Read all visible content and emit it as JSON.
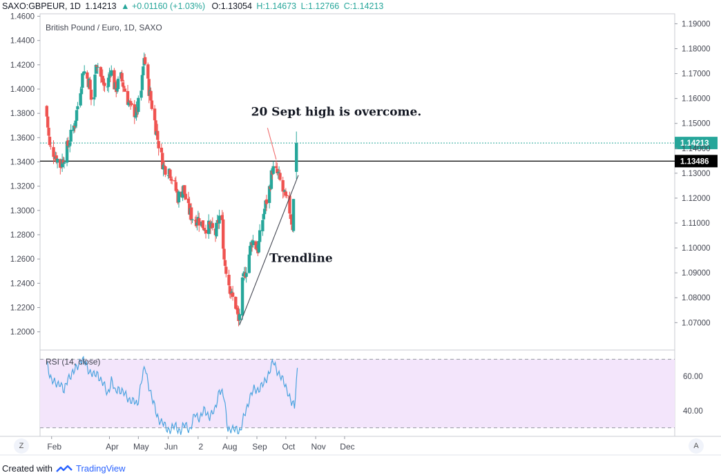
{
  "header": {
    "symbol": "SAXO:GBPEUR, 1D",
    "last": "1.14213",
    "change": "+0.01160 (+1.03%)",
    "open": "O:1.13054",
    "high": "H:1.14673",
    "low": "L:1.12766",
    "close": "C:1.14213"
  },
  "footer": {
    "created_with": "Created with",
    "brand": "TradingView"
  },
  "buttons": {
    "left_corner": "Z",
    "right_corner": "A"
  },
  "colors": {
    "up": "#26a69a",
    "down": "#ef5350",
    "rsi_line": "#4aa3df",
    "rsi_band": "#f3e5fb"
  },
  "chart_data": [
    {
      "type": "candlestick",
      "title": "British Pound / Euro, 1D, SAXO",
      "left_axis": {
        "range": [
          1.185,
          1.462
        ],
        "ticks": [
          "1.4600",
          "1.4400",
          "1.4200",
          "1.4000",
          "1.3800",
          "1.3600",
          "1.3400",
          "1.3200",
          "1.3000",
          "1.2800",
          "1.2600",
          "1.2400",
          "1.2200",
          "1.2000"
        ]
      },
      "right_axis": {
        "range": [
          1.059,
          1.194
        ],
        "ticks": [
          "1.19000",
          "1.18000",
          "1.17000",
          "1.16000",
          "1.15000",
          "1.14000",
          "1.13000",
          "1.12000",
          "1.11000",
          "1.10000",
          "1.09000",
          "1.08000",
          "1.07000"
        ]
      },
      "x_ticks": [
        "Feb",
        "Apr",
        "May",
        "Jun",
        "2",
        "Aug",
        "Sep",
        "Oct",
        "Nov",
        "Dec"
      ],
      "series_close_points": [
        [
          "2020-01-27",
          1.386
        ],
        [
          "2020-01-31",
          1.352
        ],
        [
          "2020-02-05",
          1.347
        ],
        [
          "2020-02-11",
          1.337
        ],
        [
          "2020-02-14",
          1.343
        ],
        [
          "2020-02-20",
          1.356
        ],
        [
          "2020-02-26",
          1.372
        ],
        [
          "2020-03-02",
          1.396
        ],
        [
          "2020-03-06",
          1.416
        ],
        [
          "2020-03-12",
          1.405
        ],
        [
          "2020-03-16",
          1.378
        ],
        [
          "2020-03-19",
          1.425
        ],
        [
          "2020-03-24",
          1.41
        ],
        [
          "2020-03-30",
          1.398
        ],
        [
          "2020-04-03",
          1.417
        ],
        [
          "2020-04-08",
          1.4
        ],
        [
          "2020-04-14",
          1.409
        ],
        [
          "2020-04-20",
          1.394
        ],
        [
          "2020-04-24",
          1.384
        ],
        [
          "2020-04-30",
          1.38
        ],
        [
          "2020-05-05",
          1.398
        ],
        [
          "2020-05-08",
          1.427
        ],
        [
          "2020-05-12",
          1.404
        ],
        [
          "2020-05-18",
          1.378
        ],
        [
          "2020-05-22",
          1.359
        ],
        [
          "2020-05-28",
          1.336
        ],
        [
          "2020-06-03",
          1.334
        ],
        [
          "2020-06-08",
          1.322
        ],
        [
          "2020-06-12",
          1.311
        ],
        [
          "2020-06-18",
          1.318
        ],
        [
          "2020-06-22",
          1.302
        ],
        [
          "2020-06-28",
          1.293
        ],
        [
          "2020-07-03",
          1.293
        ],
        [
          "2020-07-09",
          1.287
        ],
        [
          "2020-07-15",
          1.286
        ],
        [
          "2020-07-21",
          1.281
        ],
        [
          "2020-07-27",
          1.302
        ],
        [
          "2020-07-30",
          1.26
        ],
        [
          "2020-08-03",
          1.244
        ],
        [
          "2020-08-07",
          1.229
        ],
        [
          "2020-08-11",
          1.222
        ],
        [
          "2020-08-14",
          1.208
        ],
        [
          "2020-08-18",
          1.239
        ],
        [
          "2020-08-24",
          1.26
        ],
        [
          "2020-08-28",
          1.276
        ],
        [
          "2020-09-03",
          1.268
        ],
        [
          "2020-09-09",
          1.298
        ],
        [
          "2020-09-15",
          1.318
        ],
        [
          "2020-09-18",
          1.334
        ],
        [
          "2020-09-24",
          1.329
        ],
        [
          "2020-09-30",
          1.313
        ],
        [
          "2020-10-06",
          1.3
        ],
        [
          "2020-10-09",
          1.287
        ],
        [
          "2020-10-12",
          1.35
        ]
      ],
      "levels": [
        {
          "value": 1.14213,
          "label": "1.14213",
          "color": "#26a69a",
          "style": "dotted"
        },
        {
          "value": 1.13486,
          "label": "1.13486",
          "color": "#000000",
          "style": "solid"
        }
      ],
      "annotations": [
        {
          "text": "20 Sept high is overcome."
        },
        {
          "text": "Trendline"
        }
      ],
      "trendline": {
        "from": [
          "2020-08-14",
          1.2058
        ],
        "to": [
          "2020-10-14",
          1.329
        ]
      },
      "callout_arrow": {
        "from": [
          "2020-09-12",
          1.368
        ],
        "to": [
          "2020-09-21",
          1.342
        ]
      }
    },
    {
      "type": "line",
      "title": "RSI (14, close)",
      "y_range": [
        25,
        75
      ],
      "band": [
        30,
        70
      ],
      "y_ticks": [
        "60.00",
        "40.00"
      ],
      "points": [
        [
          "2020-01-27",
          68
        ],
        [
          "2020-02-01",
          58
        ],
        [
          "2020-02-05",
          55
        ],
        [
          "2020-02-10",
          57
        ],
        [
          "2020-02-14",
          50
        ],
        [
          "2020-02-18",
          60
        ],
        [
          "2020-02-24",
          62
        ],
        [
          "2020-03-02",
          70
        ],
        [
          "2020-03-06",
          68
        ],
        [
          "2020-03-12",
          63
        ],
        [
          "2020-03-16",
          60
        ],
        [
          "2020-03-20",
          62
        ],
        [
          "2020-03-24",
          57
        ],
        [
          "2020-03-30",
          50
        ],
        [
          "2020-04-03",
          58
        ],
        [
          "2020-04-07",
          50
        ],
        [
          "2020-04-10",
          54
        ],
        [
          "2020-04-15",
          50
        ],
        [
          "2020-04-20",
          48
        ],
        [
          "2020-04-25",
          45
        ],
        [
          "2020-04-30",
          44
        ],
        [
          "2020-05-04",
          57
        ],
        [
          "2020-05-08",
          65
        ],
        [
          "2020-05-12",
          55
        ],
        [
          "2020-05-16",
          45
        ],
        [
          "2020-05-20",
          38
        ],
        [
          "2020-05-25",
          33
        ],
        [
          "2020-05-30",
          30
        ],
        [
          "2020-06-04",
          29
        ],
        [
          "2020-06-09",
          31
        ],
        [
          "2020-06-14",
          28
        ],
        [
          "2020-06-19",
          32
        ],
        [
          "2020-06-24",
          29
        ],
        [
          "2020-06-29",
          38
        ],
        [
          "2020-07-04",
          36
        ],
        [
          "2020-07-09",
          40
        ],
        [
          "2020-07-14",
          37
        ],
        [
          "2020-07-19",
          39
        ],
        [
          "2020-07-24",
          53
        ],
        [
          "2020-07-29",
          47
        ],
        [
          "2020-08-02",
          30
        ],
        [
          "2020-08-07",
          28
        ],
        [
          "2020-08-11",
          30
        ],
        [
          "2020-08-15",
          28
        ],
        [
          "2020-08-19",
          37
        ],
        [
          "2020-08-24",
          47
        ],
        [
          "2020-08-29",
          52
        ],
        [
          "2020-09-03",
          53
        ],
        [
          "2020-09-08",
          55
        ],
        [
          "2020-09-13",
          62
        ],
        [
          "2020-09-18",
          68
        ],
        [
          "2020-09-23",
          63
        ],
        [
          "2020-09-28",
          57
        ],
        [
          "2020-10-03",
          52
        ],
        [
          "2020-10-07",
          44
        ],
        [
          "2020-10-10",
          42
        ],
        [
          "2020-10-13",
          65
        ]
      ]
    }
  ]
}
